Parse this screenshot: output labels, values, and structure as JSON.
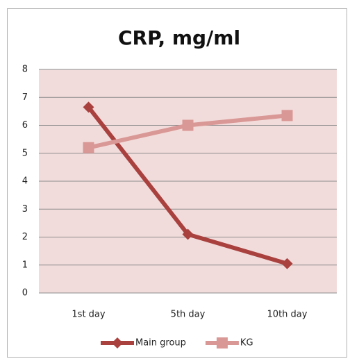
{
  "chart_data": {
    "type": "line",
    "title": "CRP, mg/ml",
    "categories": [
      "1st day",
      "5th day",
      "10th day"
    ],
    "series": [
      {
        "name": "Main group",
        "color": "#a9413f",
        "marker": "diamond",
        "values": [
          6.65,
          2.1,
          1.05
        ]
      },
      {
        "name": "KG",
        "color": "#d99896",
        "marker": "square",
        "values": [
          5.2,
          6.0,
          6.35
        ]
      }
    ],
    "ylim": [
      0,
      8
    ],
    "yticks": [
      0,
      1,
      2,
      3,
      4,
      5,
      6,
      7,
      8
    ],
    "grid": true,
    "legend": "bottom"
  }
}
